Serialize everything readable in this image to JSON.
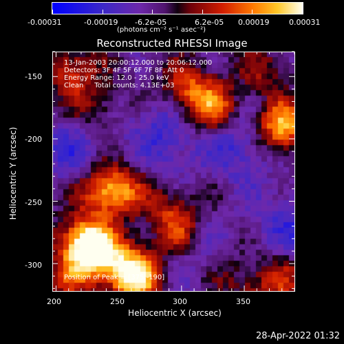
{
  "chart_data": {
    "type": "heatmap",
    "title": "Reconstructed RHESSI Image",
    "xlabel": "Heliocentric X (arcsec)",
    "ylabel": "Heliocentric Y (arcsec)",
    "xlim": [
      197,
      390
    ],
    "ylim": [
      -322,
      -130
    ],
    "xticks": [
      "200",
      "250",
      "300",
      "350"
    ],
    "yticks": [
      "-150",
      "-200",
      "-250",
      "-300"
    ],
    "colorbar": {
      "range": [
        -0.00031,
        0.00031
      ],
      "ticks": [
        "-0.00031",
        "-0.00019",
        "-6.2e-05",
        "6.2e-05",
        "0.00019",
        "0.00031"
      ],
      "unit_label": "(photons cm⁻² s⁻¹ asec⁻²)"
    },
    "annotations": [
      "13-Jan-2003 20:00:12.000 to 20:06:12.000",
      "Detectors: 3F 4F 5F 6F 7F 8F, Att 0",
      "Energy Range: 12.0 - 25.0 keV",
      "Clean     Total counts: 4.13E+03"
    ],
    "peak_label": "Position of Peak = [375,-190]",
    "peak": [
      375,
      -190
    ],
    "blobs": [
      {
        "x": 230,
        "y": -290,
        "v": 0.0003
      },
      {
        "x": 222,
        "y": -280,
        "v": 0.00024
      },
      {
        "x": 380,
        "y": -190,
        "v": 0.00031
      },
      {
        "x": 325,
        "y": -175,
        "v": 0.00022
      },
      {
        "x": 305,
        "y": -160,
        "v": 0.00018
      },
      {
        "x": 250,
        "y": -240,
        "v": 0.00021
      },
      {
        "x": 235,
        "y": -240,
        "v": 0.00016
      },
      {
        "x": 265,
        "y": -310,
        "v": 0.00027
      },
      {
        "x": 255,
        "y": -300,
        "v": 0.00018
      },
      {
        "x": 300,
        "y": -275,
        "v": 0.00016
      },
      {
        "x": 290,
        "y": -255,
        "v": 0.00012
      },
      {
        "x": 380,
        "y": -310,
        "v": 0.00012
      },
      {
        "x": 355,
        "y": -320,
        "v": 0.0001
      },
      {
        "x": 212,
        "y": -145,
        "v": 0.00016
      },
      {
        "x": 210,
        "y": -310,
        "v": 0.00012
      },
      {
        "x": 230,
        "y": -175,
        "v": 0.0001
      },
      {
        "x": 270,
        "y": -205,
        "v": 8e-05
      },
      {
        "x": 365,
        "y": -145,
        "v": 9e-05
      },
      {
        "x": 330,
        "y": -300,
        "v": 8e-05
      },
      {
        "x": 280,
        "y": -200,
        "v": -0.00018
      },
      {
        "x": 345,
        "y": -205,
        "v": -0.00014
      },
      {
        "x": 315,
        "y": -290,
        "v": -0.00012
      },
      {
        "x": 385,
        "y": -265,
        "v": -0.00012
      },
      {
        "x": 210,
        "y": -210,
        "v": -0.00012
      }
    ]
  },
  "footer": {
    "timestamp": "28-Apr-2022 01:32"
  }
}
